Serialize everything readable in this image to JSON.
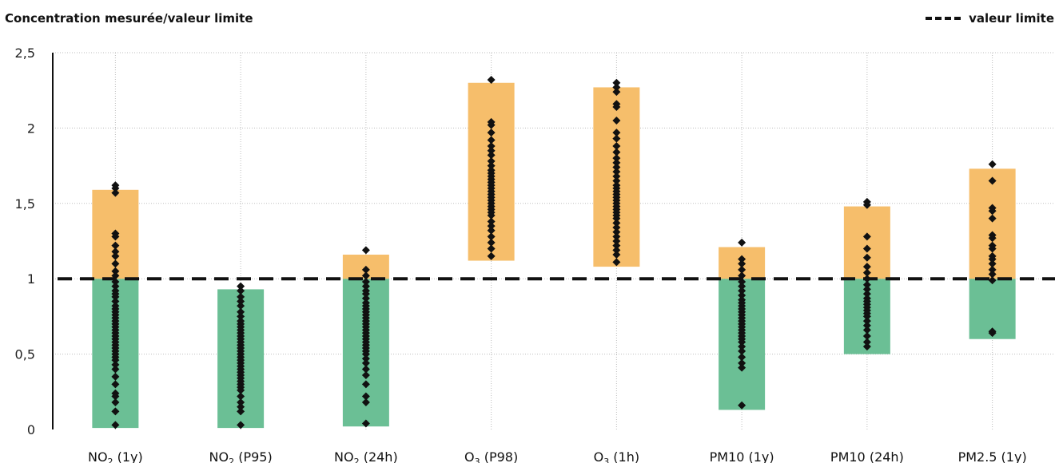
{
  "chart_data": {
    "type": "bar",
    "ylabel": "Concentration mesurée/valeur limite",
    "ylim": [
      0,
      2.5
    ],
    "yticks": [
      "0",
      "0,5",
      "1",
      "1,5",
      "2",
      "2,5"
    ],
    "ytick_values": [
      0,
      0.5,
      1,
      1.5,
      2,
      2.5
    ],
    "grid": true,
    "legend_position": "top-right",
    "reference_line": {
      "name": "valeur limite",
      "value": 1,
      "style": "dashed",
      "color": "#111111"
    },
    "colors": {
      "above": "#F6BE6B",
      "below": "#6BBF95",
      "points": "#111111"
    },
    "categories": [
      {
        "label": "NO",
        "sub": "2",
        "suffix": " (1y)",
        "range": [
          0.01,
          1.59
        ],
        "points": [
          1.62,
          1.6,
          1.57,
          1.3,
          1.28,
          1.22,
          1.18,
          1.15,
          1.1,
          1.05,
          1.02,
          0.98,
          0.95,
          0.92,
          0.9,
          0.88,
          0.85,
          0.82,
          0.8,
          0.78,
          0.76,
          0.74,
          0.72,
          0.7,
          0.68,
          0.66,
          0.64,
          0.62,
          0.6,
          0.58,
          0.56,
          0.54,
          0.52,
          0.5,
          0.48,
          0.46,
          0.43,
          0.4,
          0.35,
          0.3,
          0.24,
          0.22,
          0.18,
          0.12,
          0.03
        ]
      },
      {
        "label": "NO",
        "sub": "2",
        "suffix": " (P95)",
        "range": [
          0.01,
          0.93
        ],
        "points": [
          0.95,
          0.92,
          0.88,
          0.85,
          0.82,
          0.78,
          0.75,
          0.72,
          0.7,
          0.68,
          0.66,
          0.64,
          0.62,
          0.6,
          0.58,
          0.56,
          0.54,
          0.52,
          0.5,
          0.48,
          0.46,
          0.44,
          0.42,
          0.4,
          0.38,
          0.36,
          0.34,
          0.32,
          0.3,
          0.28,
          0.26,
          0.22,
          0.18,
          0.15,
          0.12,
          0.03
        ]
      },
      {
        "label": "NO",
        "sub": "2",
        "suffix": " (24h)",
        "range": [
          0.02,
          1.16
        ],
        "points": [
          1.19,
          1.06,
          1.02,
          0.98,
          0.95,
          0.92,
          0.9,
          0.87,
          0.84,
          0.82,
          0.8,
          0.78,
          0.76,
          0.74,
          0.72,
          0.7,
          0.68,
          0.66,
          0.64,
          0.62,
          0.6,
          0.58,
          0.56,
          0.54,
          0.52,
          0.5,
          0.47,
          0.44,
          0.4,
          0.36,
          0.3,
          0.22,
          0.18,
          0.04
        ]
      },
      {
        "label": "O",
        "sub": "3",
        "suffix": " (P98)",
        "range": [
          1.12,
          2.3
        ],
        "points": [
          2.32,
          2.04,
          2.02,
          1.97,
          1.92,
          1.88,
          1.85,
          1.82,
          1.78,
          1.75,
          1.72,
          1.7,
          1.68,
          1.66,
          1.64,
          1.62,
          1.6,
          1.58,
          1.56,
          1.54,
          1.52,
          1.5,
          1.48,
          1.46,
          1.44,
          1.42,
          1.38,
          1.35,
          1.32,
          1.28,
          1.24,
          1.2,
          1.15
        ]
      },
      {
        "label": "O",
        "sub": "3",
        "suffix": " (1h)",
        "range": [
          1.08,
          2.27
        ],
        "points": [
          2.3,
          2.27,
          2.24,
          2.16,
          2.14,
          2.05,
          1.97,
          1.93,
          1.88,
          1.84,
          1.8,
          1.77,
          1.74,
          1.71,
          1.68,
          1.65,
          1.62,
          1.6,
          1.58,
          1.56,
          1.54,
          1.52,
          1.5,
          1.48,
          1.46,
          1.44,
          1.42,
          1.4,
          1.37,
          1.34,
          1.31,
          1.28,
          1.25,
          1.22,
          1.19,
          1.16,
          1.11
        ]
      },
      {
        "label": "PM10 (1y)",
        "sub": "",
        "suffix": "",
        "range": [
          0.13,
          1.21
        ],
        "points": [
          1.24,
          1.13,
          1.1,
          1.06,
          1.02,
          0.98,
          0.95,
          0.92,
          0.89,
          0.86,
          0.84,
          0.82,
          0.8,
          0.78,
          0.76,
          0.74,
          0.72,
          0.7,
          0.68,
          0.66,
          0.64,
          0.62,
          0.6,
          0.58,
          0.55,
          0.52,
          0.48,
          0.44,
          0.41,
          0.16
        ]
      },
      {
        "label": "PM10 (24h)",
        "sub": "",
        "suffix": "",
        "range": [
          0.5,
          1.48
        ],
        "points": [
          1.51,
          1.49,
          1.28,
          1.2,
          1.14,
          1.08,
          1.04,
          1.0,
          0.96,
          0.93,
          0.9,
          0.87,
          0.85,
          0.83,
          0.81,
          0.79,
          0.77,
          0.75,
          0.72,
          0.69,
          0.66,
          0.62,
          0.58,
          0.55
        ]
      },
      {
        "label": "PM2.5 (1y)",
        "sub": "",
        "suffix": "",
        "range": [
          0.6,
          1.73
        ],
        "points": [
          1.76,
          1.65,
          1.47,
          1.45,
          1.4,
          1.29,
          1.27,
          1.22,
          1.2,
          1.15,
          1.13,
          1.1,
          1.06,
          1.03,
          0.99,
          0.65,
          0.64
        ]
      }
    ]
  }
}
